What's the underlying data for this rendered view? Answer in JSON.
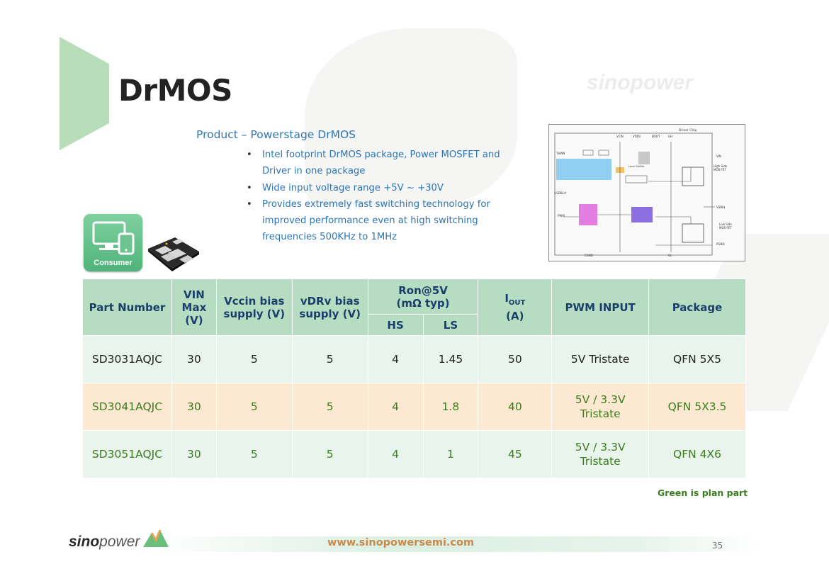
{
  "slide": {
    "title": "DrMOS",
    "product_title": "Product – Powerstage  DrMOS",
    "bullets": [
      "Intel footprint DrMOS package, Power MOSFET and Driver in one package",
      "Wide input voltage range +5V ~ +30V",
      "Provides extremely fast switching technology for improved performance even at high switching frequencies 500KHz to 1MHz"
    ],
    "consumer_label": "Consumer",
    "watermark_text": "sinopower"
  },
  "diagram": {
    "labels": {
      "driver_chip": "Driver Chip",
      "vcin": "VCIN",
      "vdrv": "VDRV",
      "boot": "BOOT",
      "gh": "GH",
      "thwn": "THWN",
      "vin": "VIN",
      "high_side": "High Side",
      "mos_fet": "MOS FET",
      "lsdbl": "LSDBL#",
      "pwm": "PWM",
      "vswh": "VSWH",
      "low_side": "Low Side",
      "mos_fet2": "MOS FET",
      "pgnd": "PGND",
      "cgnd": "CGND",
      "gl": "GL",
      "level_shifter": "Level Shifter"
    }
  },
  "table": {
    "headers": {
      "part_number": "Part Number",
      "vin_max": [
        "VIN",
        "Max",
        "(V)"
      ],
      "vccin": [
        "Vccin bias",
        "supply (V)"
      ],
      "vdrv": [
        "vDRv bias",
        "supply (V)"
      ],
      "ron": [
        "Ron@5V",
        "(mΩ typ)"
      ],
      "hs": "HS",
      "ls": "LS",
      "iout_main": "I",
      "iout_sub": "OUT",
      "iout_unit": "(A)",
      "pwm": "PWM INPUT",
      "package": "Package"
    },
    "rows": [
      {
        "part": "SD3031AQJC",
        "vin": "30",
        "vccin": "5",
        "vdrv": "5",
        "hs": "4",
        "ls": "1.45",
        "iout": "50",
        "pwm": [
          "5V Tristate"
        ],
        "package": "QFN 5X5"
      },
      {
        "part": "SD3041AQJC",
        "vin": "30",
        "vccin": "5",
        "vdrv": "5",
        "hs": "4",
        "ls": "1.8",
        "iout": "40",
        "pwm": [
          "5V / 3.3V",
          "Tristate"
        ],
        "package": "QFN 5X3.5"
      },
      {
        "part": "SD3051AQJC",
        "vin": "30",
        "vccin": "5",
        "vdrv": "5",
        "hs": "4",
        "ls": "1",
        "iout": "45",
        "pwm": [
          "5V / 3.3V",
          "Tristate"
        ],
        "package": "QFN 4X6"
      }
    ]
  },
  "note": "Green is plan part",
  "footer": {
    "logo_bold": "sino",
    "logo_rest": "power",
    "url": "www.sinopowersemi.com",
    "page": "35"
  },
  "colors": {
    "accent_green": "#3a7d1e",
    "header_green": "#b6ddc1",
    "row_light": "#e9f4ec",
    "row_orange": "#fde9d1",
    "blue_text": "#2e75b6"
  }
}
